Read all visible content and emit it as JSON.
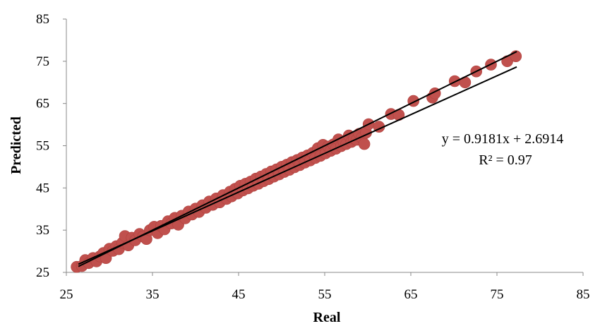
{
  "chart_data": {
    "type": "scatter",
    "title": "",
    "xlabel": "Real",
    "ylabel": "Predicted",
    "xlim": [
      25,
      85
    ],
    "ylim": [
      25,
      85
    ],
    "xticks": [
      25,
      35,
      45,
      55,
      65,
      75,
      85
    ],
    "yticks": [
      25,
      35,
      45,
      55,
      65,
      75,
      85
    ],
    "grid": false,
    "legend": "none",
    "colors": {
      "points": "#c0504d",
      "point_edge": "#b0413e",
      "lines": "#000000"
    },
    "trendline": {
      "slope": 0.9181,
      "intercept": 2.6914,
      "x_range": [
        26.4,
        77.3
      ]
    },
    "identity_line": {
      "x_range": [
        26.4,
        77.3
      ]
    },
    "annotations": {
      "equation": "y = 0.9181x + 2.6914",
      "r_squared": "R² = 0.97"
    },
    "series": [
      {
        "points": [
          [
            26.2,
            26.3
          ],
          [
            26.8,
            26.5
          ],
          [
            27.2,
            27.9
          ],
          [
            27.6,
            27.2
          ],
          [
            28.1,
            28.4
          ],
          [
            28.5,
            27.6
          ],
          [
            28.9,
            28.8
          ],
          [
            29.3,
            29.6
          ],
          [
            29.6,
            28.4
          ],
          [
            30.0,
            30.6
          ],
          [
            30.4,
            30.1
          ],
          [
            30.8,
            31.2
          ],
          [
            31.1,
            30.5
          ],
          [
            31.5,
            32.0
          ],
          [
            31.8,
            33.6
          ],
          [
            32.2,
            31.4
          ],
          [
            32.6,
            33.2
          ],
          [
            33.0,
            32.6
          ],
          [
            33.5,
            34.1
          ],
          [
            33.9,
            33.5
          ],
          [
            34.3,
            32.9
          ],
          [
            34.7,
            35.0
          ],
          [
            35.2,
            35.8
          ],
          [
            35.6,
            34.3
          ],
          [
            36.0,
            36.0
          ],
          [
            36.4,
            35.2
          ],
          [
            36.8,
            37.1
          ],
          [
            37.2,
            36.6
          ],
          [
            37.6,
            37.9
          ],
          [
            38.0,
            36.3
          ],
          [
            38.4,
            38.4
          ],
          [
            38.8,
            37.8
          ],
          [
            39.2,
            39.4
          ],
          [
            39.6,
            38.7
          ],
          [
            40.0,
            40.1
          ],
          [
            40.4,
            39.3
          ],
          [
            40.8,
            40.9
          ],
          [
            41.2,
            40.3
          ],
          [
            41.6,
            41.8
          ],
          [
            42.0,
            41.0
          ],
          [
            42.4,
            42.5
          ],
          [
            42.8,
            41.6
          ],
          [
            43.2,
            43.3
          ],
          [
            43.6,
            42.4
          ],
          [
            44.0,
            44.1
          ],
          [
            44.2,
            43.0
          ],
          [
            44.6,
            44.8
          ],
          [
            44.9,
            43.7
          ],
          [
            45.2,
            45.5
          ],
          [
            45.5,
            44.4
          ],
          [
            45.8,
            46.0
          ],
          [
            46.1,
            44.9
          ],
          [
            46.4,
            46.5
          ],
          [
            46.7,
            45.5
          ],
          [
            47.0,
            47.2
          ],
          [
            47.3,
            46.0
          ],
          [
            47.6,
            47.7
          ],
          [
            47.9,
            46.6
          ],
          [
            48.2,
            48.3
          ],
          [
            48.5,
            47.1
          ],
          [
            48.8,
            48.9
          ],
          [
            49.1,
            47.7
          ],
          [
            49.4,
            49.4
          ],
          [
            49.7,
            48.2
          ],
          [
            50.0,
            50.0
          ],
          [
            50.3,
            48.8
          ],
          [
            50.6,
            50.5
          ],
          [
            50.9,
            49.3
          ],
          [
            51.2,
            51.1
          ],
          [
            51.5,
            49.9
          ],
          [
            51.8,
            51.6
          ],
          [
            52.1,
            50.4
          ],
          [
            52.4,
            52.2
          ],
          [
            52.7,
            51.0
          ],
          [
            53.0,
            52.7
          ],
          [
            53.3,
            51.5
          ],
          [
            53.6,
            53.3
          ],
          [
            53.9,
            52.1
          ],
          [
            54.2,
            54.4
          ],
          [
            54.5,
            52.6
          ],
          [
            54.8,
            55.2
          ],
          [
            55.1,
            53.2
          ],
          [
            55.4,
            54.8
          ],
          [
            55.7,
            53.8
          ],
          [
            56.0,
            55.3
          ],
          [
            56.3,
            54.3
          ],
          [
            56.6,
            56.5
          ],
          [
            56.9,
            54.9
          ],
          [
            57.2,
            55.9
          ],
          [
            57.5,
            55.4
          ],
          [
            57.8,
            57.4
          ],
          [
            58.1,
            55.9
          ],
          [
            58.4,
            56.7
          ],
          [
            58.7,
            56.4
          ],
          [
            59.0,
            57.8
          ],
          [
            59.3,
            56.9
          ],
          [
            59.6,
            55.4
          ],
          [
            59.8,
            58.1
          ],
          [
            60.1,
            60.1
          ],
          [
            61.3,
            59.5
          ],
          [
            62.7,
            62.5
          ],
          [
            63.6,
            62.3
          ],
          [
            65.3,
            65.6
          ],
          [
            67.5,
            66.4
          ],
          [
            67.8,
            67.4
          ],
          [
            70.1,
            70.3
          ],
          [
            71.3,
            70.0
          ],
          [
            72.6,
            72.6
          ],
          [
            74.3,
            74.2
          ],
          [
            76.2,
            75.0
          ],
          [
            77.2,
            76.2
          ]
        ]
      }
    ]
  }
}
